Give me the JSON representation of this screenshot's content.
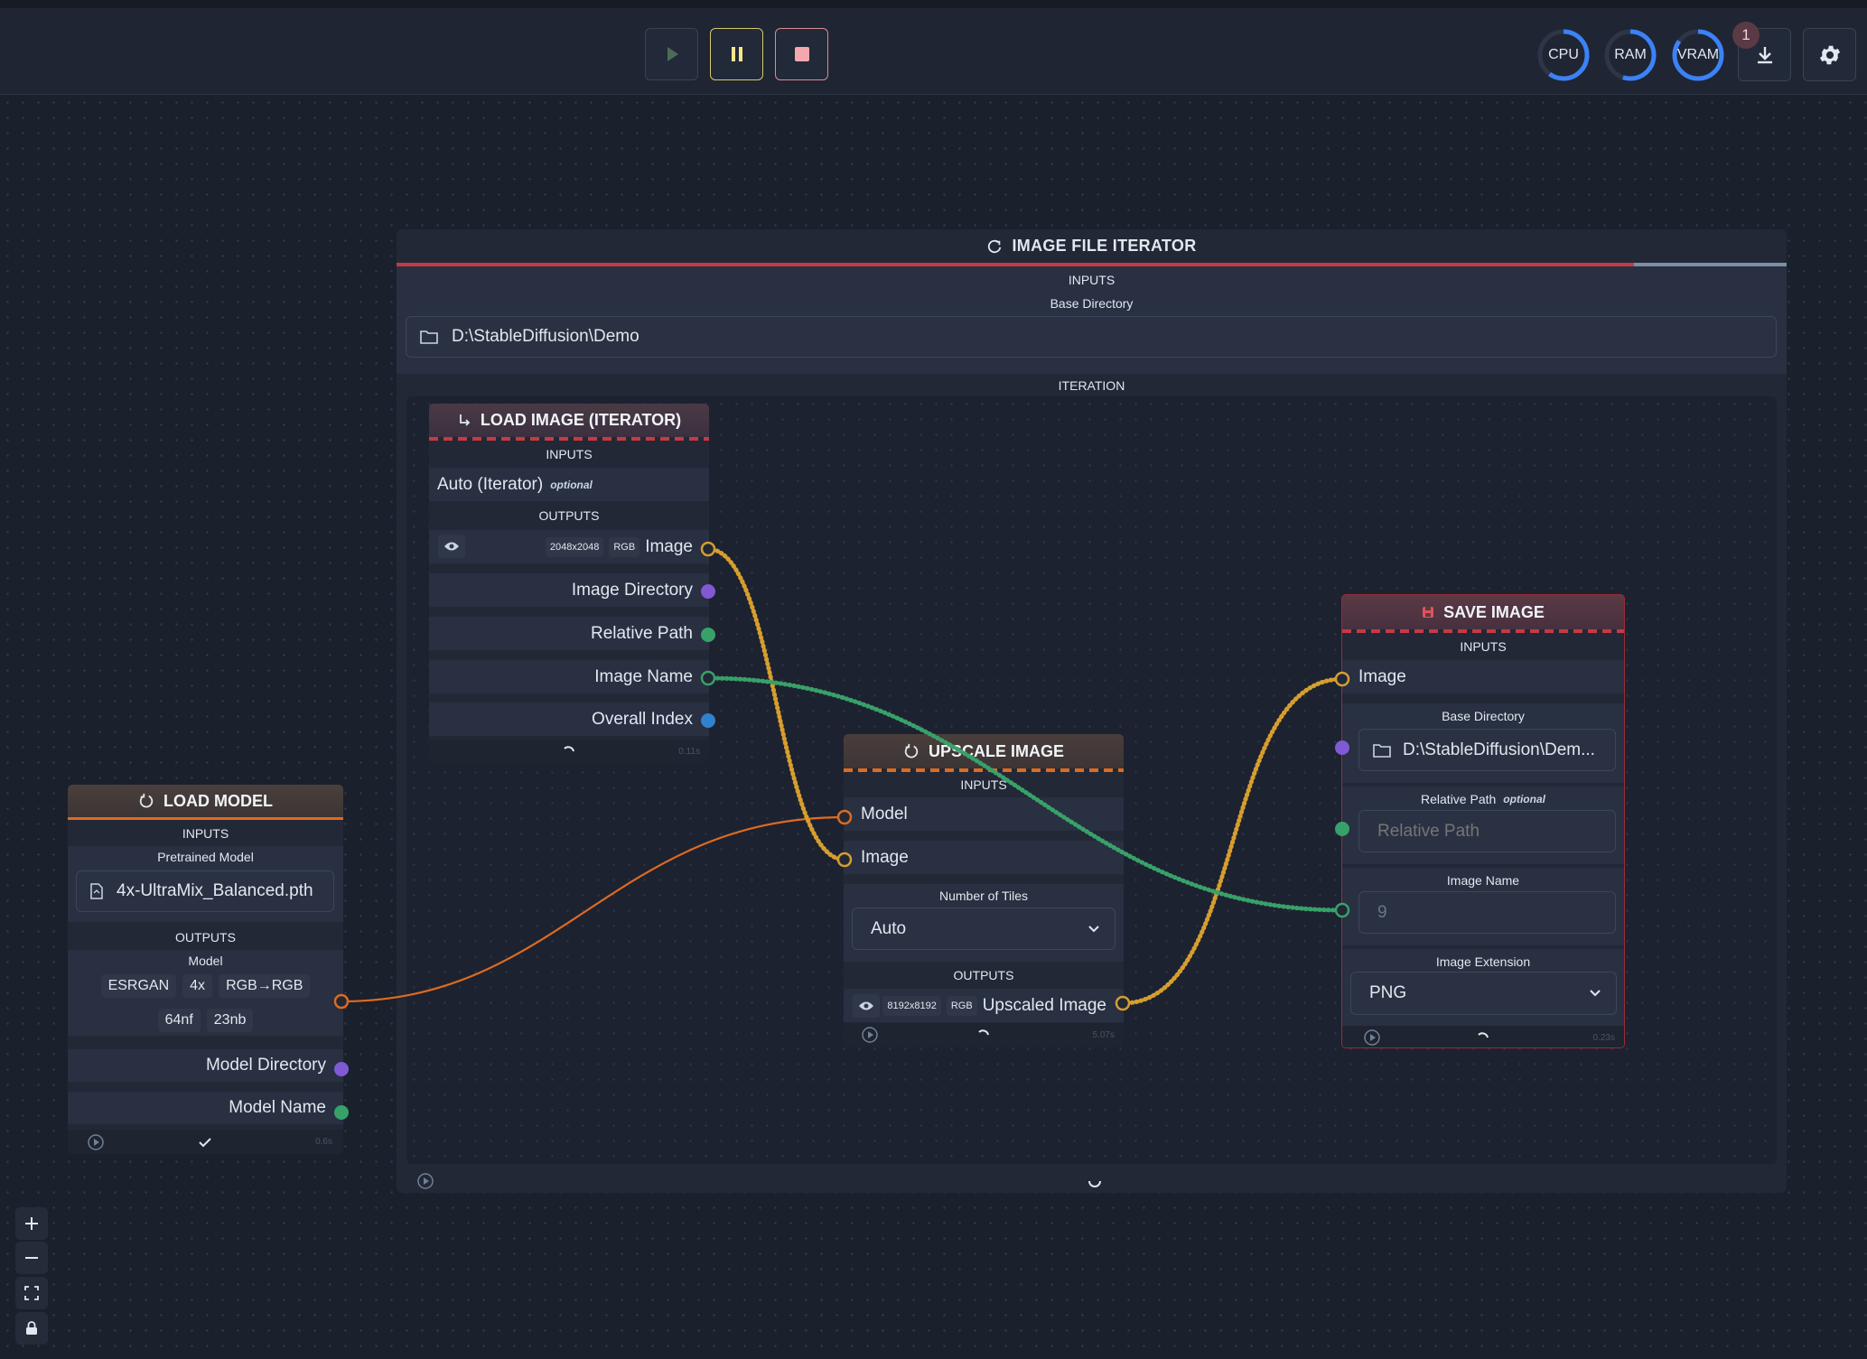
{
  "toolbar": {
    "play_icon": "play-icon",
    "pause_icon": "pause-icon",
    "stop_icon": "stop-icon",
    "gauges": [
      {
        "label": "CPU",
        "percent": 60,
        "color": "#3b82f6"
      },
      {
        "label": "RAM",
        "percent": 55,
        "color": "#3b82f6"
      },
      {
        "label": "VRAM",
        "percent": 85,
        "color": "#3b82f6"
      }
    ],
    "download_badge": "1",
    "accent": "#3b82f6"
  },
  "iterator": {
    "title": "IMAGE FILE ITERATOR",
    "inputs_label": "INPUTS",
    "base_dir_label": "Base Directory",
    "base_dir_value": "D:\\StableDiffusion\\Demo",
    "iteration_label": "ITERATION",
    "progress": 0.89,
    "accent": "#c53a43"
  },
  "load_image": {
    "title": "LOAD IMAGE (ITERATOR)",
    "inputs_label": "INPUTS",
    "auto_label": "Auto (Iterator)",
    "optional": "optional",
    "outputs_label": "OUTPUTS",
    "dims": "2048x2048",
    "channel": "RGB",
    "outputs": [
      "Image",
      "Image Directory",
      "Relative Path",
      "Image Name",
      "Overall Index"
    ],
    "time": "0.11s"
  },
  "load_model": {
    "title": "LOAD MODEL",
    "inputs_label": "INPUTS",
    "pretrained_label": "Pretrained Model",
    "pretrained_value": "4x-UltraMix_Balanced.pth",
    "outputs_label": "OUTPUTS",
    "model_label": "Model",
    "tags_row1": [
      "ESRGAN",
      "4x",
      "RGB→RGB"
    ],
    "tags_row2": [
      "64nf",
      "23nb"
    ],
    "outputs": [
      "Model Directory",
      "Model Name"
    ],
    "time": "0.6s"
  },
  "upscale": {
    "title": "UPSCALE IMAGE",
    "inputs_label": "INPUTS",
    "inputs": [
      "Model",
      "Image"
    ],
    "tiles_label": "Number of Tiles",
    "tiles_value": "Auto",
    "outputs_label": "OUTPUTS",
    "dims": "8192x8192",
    "channel": "RGB",
    "output": "Upscaled Image",
    "time": "5.07s"
  },
  "save_image": {
    "title": "SAVE IMAGE",
    "inputs_label": "INPUTS",
    "image_label": "Image",
    "base_dir_label": "Base Directory",
    "base_dir_value": "D:\\StableDiffusion\\Dem...",
    "rel_path_label": "Relative Path",
    "optional": "optional",
    "rel_path_placeholder": "Relative Path",
    "image_name_label": "Image Name",
    "image_name_value": "9",
    "ext_label": "Image Extension",
    "ext_value": "PNG",
    "time": "0.23s"
  }
}
